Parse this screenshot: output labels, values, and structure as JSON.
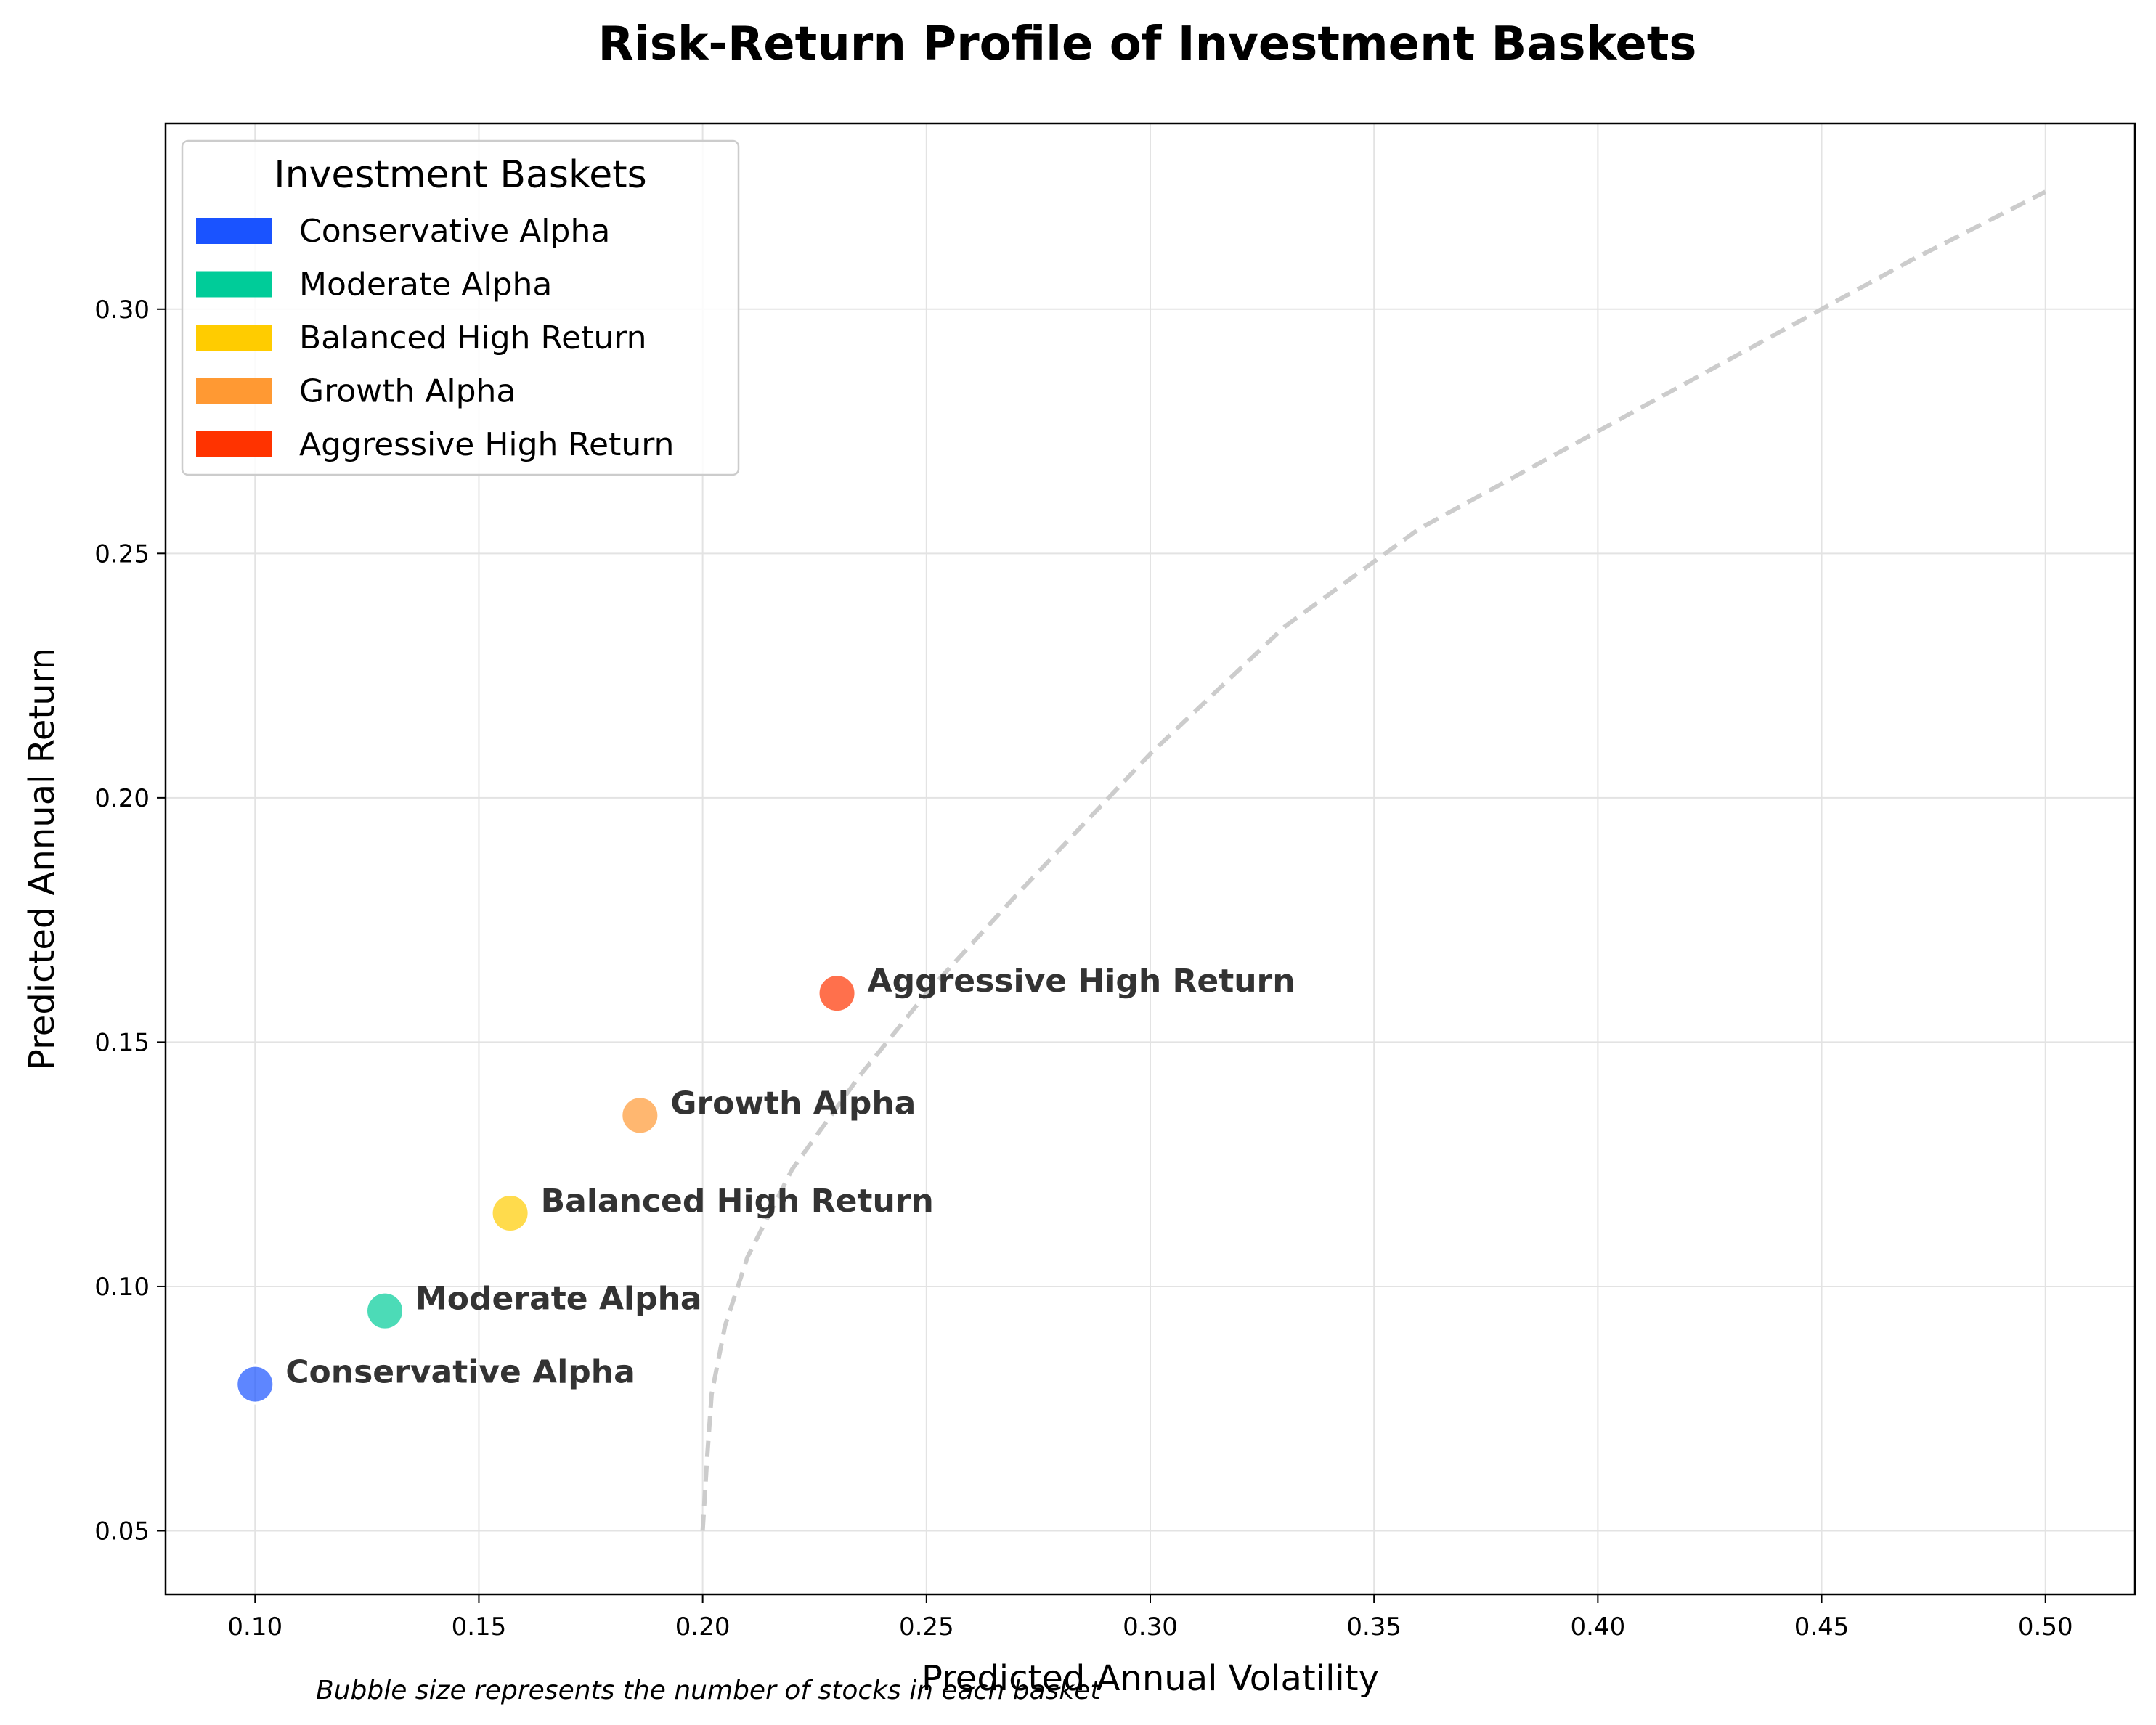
{
  "chart_data": {
    "type": "scatter",
    "title": "Risk-Return Profile of Investment Baskets",
    "xlabel": "Predicted Annual Volatility",
    "ylabel": "Predicted Annual Return",
    "xlim": [
      0.08,
      0.52
    ],
    "ylim": [
      0.037,
      0.338
    ],
    "x_ticks": [
      "0.10",
      "0.15",
      "0.20",
      "0.25",
      "0.30",
      "0.35",
      "0.40",
      "0.45",
      "0.50"
    ],
    "y_ticks": [
      "0.05",
      "0.10",
      "0.15",
      "0.20",
      "0.25",
      "0.30"
    ],
    "grid": true,
    "legend": {
      "title": "Investment Baskets",
      "placement": "top-left"
    },
    "series": [
      {
        "name": "Conservative Alpha",
        "x": 0.1,
        "y": 0.08,
        "color": "#1a53ff"
      },
      {
        "name": "Moderate Alpha",
        "x": 0.129,
        "y": 0.095,
        "color": "#00cc99"
      },
      {
        "name": "Balanced High Return",
        "x": 0.157,
        "y": 0.115,
        "color": "#ffcc00"
      },
      {
        "name": "Growth Alpha",
        "x": 0.186,
        "y": 0.135,
        "color": "#ff9933"
      },
      {
        "name": "Aggressive High Return",
        "x": 0.23,
        "y": 0.16,
        "color": "#ff3300"
      }
    ],
    "reference_curve": {
      "style": "dashed",
      "color": "#cccccc",
      "x": [
        0.2,
        0.201,
        0.202,
        0.205,
        0.21,
        0.22,
        0.235,
        0.25,
        0.27,
        0.3,
        0.33,
        0.36,
        0.4,
        0.44,
        0.47,
        0.5
      ],
      "y": [
        0.05,
        0.065,
        0.078,
        0.092,
        0.106,
        0.124,
        0.143,
        0.16,
        0.18,
        0.209,
        0.235,
        0.255,
        0.275,
        0.295,
        0.31,
        0.324
      ]
    },
    "footnote": "Bubble size represents the number of stocks in each basket"
  }
}
